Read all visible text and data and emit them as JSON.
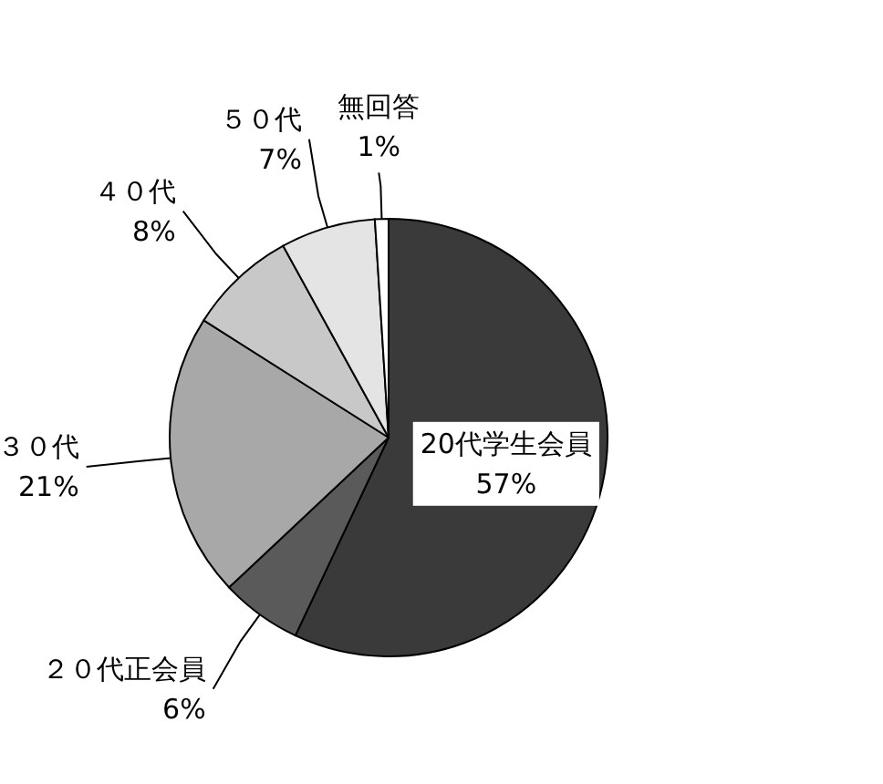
{
  "chart_data": {
    "type": "pie",
    "categories": [
      "20代学生会員",
      "２０代正会員",
      "３０代",
      "４０代",
      "５０代",
      "無回答"
    ],
    "values": [
      57,
      6,
      21,
      8,
      7,
      1
    ],
    "value_labels": [
      "57%",
      "6%",
      "21%",
      "8%",
      "7%",
      "1%"
    ],
    "colors": [
      "#3a3a3a",
      "#5a5a5a",
      "#a8a8a8",
      "#c8c8c8",
      "#e4e4e4",
      "#ffffff"
    ]
  }
}
